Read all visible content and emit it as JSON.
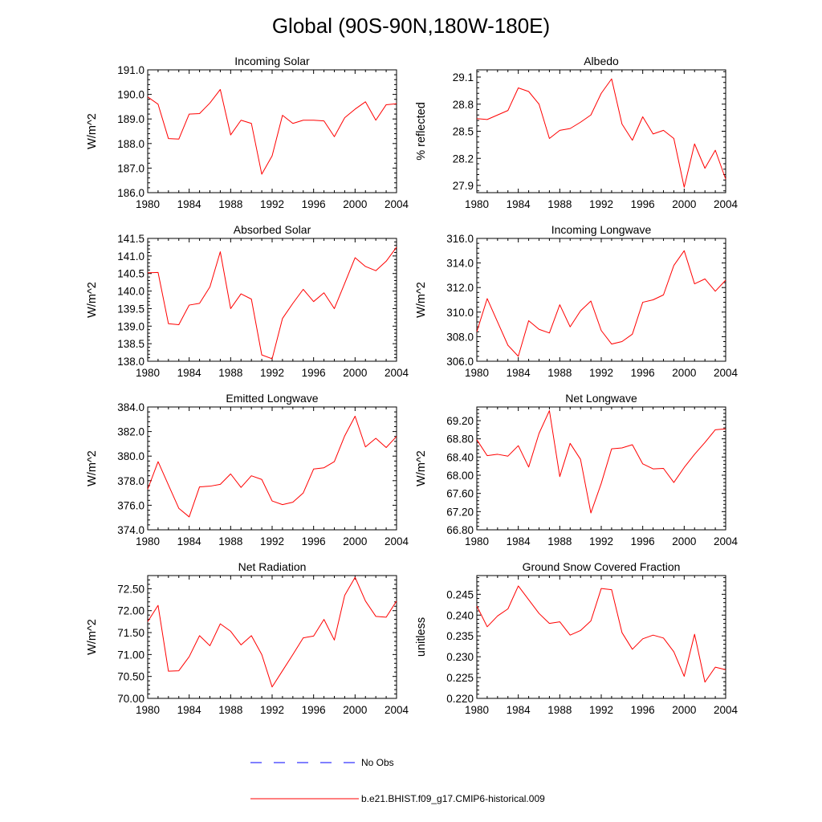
{
  "title": "Global (90S-90N,180W-180E)",
  "colors": {
    "model": "#ff0000",
    "obs": "#0000ff",
    "axis": "#000000"
  },
  "legend": {
    "obs_label": "No Obs",
    "model_label": "b.e21.BHIST.f09_g17.CMIP6-historical.009"
  },
  "chart_data": [
    {
      "type": "line",
      "title": "Incoming Solar",
      "ylabel": "W/m^2",
      "xlabel": "",
      "xlim": [
        1980,
        2004
      ],
      "ylim": [
        186.0,
        191.0
      ],
      "xticks": [
        1980,
        1984,
        1988,
        1992,
        1996,
        2000,
        2004
      ],
      "yticks": [
        "186.0",
        "187.0",
        "188.0",
        "189.0",
        "190.0",
        "191.0"
      ],
      "series": [
        {
          "name": "b.e21.BHIST.f09_g17.CMIP6-historical.009",
          "x": [
            1980,
            1981,
            1982,
            1983,
            1984,
            1985,
            1986,
            1987,
            1988,
            1989,
            1990,
            1991,
            1992,
            1993,
            1994,
            1995,
            1996,
            1997,
            1998,
            1999,
            2000,
            2001,
            2002,
            2003,
            2004
          ],
          "values": [
            189.9,
            189.6,
            188.2,
            188.18,
            189.2,
            189.22,
            189.65,
            190.2,
            188.35,
            188.95,
            188.82,
            186.75,
            187.5,
            189.15,
            188.82,
            188.95,
            188.95,
            188.92,
            188.28,
            189.05,
            189.4,
            189.7,
            188.95,
            189.58,
            189.62
          ]
        }
      ]
    },
    {
      "type": "line",
      "title": "Albedo",
      "ylabel": "% reflected",
      "xlabel": "",
      "xlim": [
        1980,
        2004
      ],
      "ylim": [
        27.82,
        29.18
      ],
      "xticks": [
        1980,
        1984,
        1988,
        1992,
        1996,
        2000,
        2004
      ],
      "yticks": [
        "27.9",
        "28.2",
        "28.5",
        "28.8",
        "29.1"
      ],
      "series": [
        {
          "name": "b.e21.BHIST.f09_g17.CMIP6-historical.009",
          "x": [
            1980,
            1981,
            1982,
            1983,
            1984,
            1985,
            1986,
            1987,
            1988,
            1989,
            1990,
            1991,
            1992,
            1993,
            1994,
            1995,
            1996,
            1997,
            1998,
            1999,
            2000,
            2001,
            2002,
            2003,
            2004
          ],
          "values": [
            28.64,
            28.63,
            28.68,
            28.73,
            28.98,
            28.94,
            28.8,
            28.42,
            28.51,
            28.53,
            28.6,
            28.68,
            28.92,
            29.08,
            28.58,
            28.4,
            28.66,
            28.47,
            28.51,
            28.42,
            27.88,
            28.36,
            28.09,
            28.29,
            27.97
          ]
        }
      ]
    },
    {
      "type": "line",
      "title": "Absorbed Solar",
      "ylabel": "W/m^2",
      "xlabel": "",
      "xlim": [
        1980,
        2004
      ],
      "ylim": [
        138.0,
        141.5
      ],
      "xticks": [
        1980,
        1984,
        1988,
        1992,
        1996,
        2000,
        2004
      ],
      "yticks": [
        "138.0",
        "138.5",
        "139.0",
        "139.5",
        "140.0",
        "140.5",
        "141.0",
        "141.5"
      ],
      "series": [
        {
          "name": "b.e21.BHIST.f09_g17.CMIP6-historical.009",
          "x": [
            1980,
            1981,
            1982,
            1983,
            1984,
            1985,
            1986,
            1987,
            1988,
            1989,
            1990,
            1991,
            1992,
            1993,
            1994,
            1995,
            1996,
            1997,
            1998,
            1999,
            2000,
            2001,
            2002,
            2003,
            2004
          ],
          "values": [
            140.52,
            140.53,
            139.07,
            139.04,
            139.6,
            139.65,
            140.12,
            141.12,
            139.5,
            139.92,
            139.77,
            138.18,
            138.07,
            139.22,
            139.65,
            140.05,
            139.7,
            139.95,
            139.5,
            140.22,
            140.95,
            140.7,
            140.58,
            140.85,
            141.25
          ]
        }
      ]
    },
    {
      "type": "line",
      "title": "Incoming Longwave",
      "ylabel": "W/m^2",
      "xlabel": "",
      "xlim": [
        1980,
        2004
      ],
      "ylim": [
        306.0,
        316.0
      ],
      "xticks": [
        1980,
        1984,
        1988,
        1992,
        1996,
        2000,
        2004
      ],
      "yticks": [
        "306.0",
        "308.0",
        "310.0",
        "312.0",
        "314.0",
        "316.0"
      ],
      "series": [
        {
          "name": "b.e21.BHIST.f09_g17.CMIP6-historical.009",
          "x": [
            1980,
            1981,
            1982,
            1983,
            1984,
            1985,
            1986,
            1987,
            1988,
            1989,
            1990,
            1991,
            1992,
            1993,
            1994,
            1995,
            1996,
            1997,
            1998,
            1999,
            2000,
            2001,
            2002,
            2003,
            2004
          ],
          "values": [
            308.4,
            311.1,
            309.2,
            307.3,
            306.4,
            309.3,
            308.6,
            308.3,
            310.6,
            308.8,
            310.1,
            310.9,
            308.5,
            307.4,
            307.6,
            308.2,
            310.8,
            311.0,
            311.4,
            313.8,
            315.0,
            312.3,
            312.7,
            311.7,
            312.6
          ]
        }
      ]
    },
    {
      "type": "line",
      "title": "Emitted Longwave",
      "ylabel": "W/m^2",
      "xlabel": "",
      "xlim": [
        1980,
        2004
      ],
      "ylim": [
        374.0,
        384.0
      ],
      "xticks": [
        1980,
        1984,
        1988,
        1992,
        1996,
        2000,
        2004
      ],
      "yticks": [
        "374.0",
        "376.0",
        "378.0",
        "380.0",
        "382.0",
        "384.0"
      ],
      "series": [
        {
          "name": "b.e21.BHIST.f09_g17.CMIP6-historical.009",
          "x": [
            1980,
            1981,
            1982,
            1983,
            1984,
            1985,
            1986,
            1987,
            1988,
            1989,
            1990,
            1991,
            1992,
            1993,
            1994,
            1995,
            1996,
            1997,
            1998,
            1999,
            2000,
            2001,
            2002,
            2003,
            2004
          ],
          "values": [
            377.3,
            379.55,
            377.65,
            375.75,
            375.05,
            377.5,
            377.55,
            377.7,
            378.55,
            377.45,
            378.4,
            378.1,
            376.35,
            376.05,
            376.25,
            377.0,
            378.95,
            379.05,
            379.55,
            381.65,
            383.25,
            380.75,
            381.45,
            380.7,
            381.6
          ]
        }
      ]
    },
    {
      "type": "line",
      "title": "Net Longwave",
      "ylabel": "W/m^2",
      "xlabel": "",
      "xlim": [
        1980,
        2004
      ],
      "ylim": [
        66.8,
        69.5
      ],
      "xticks": [
        1980,
        1984,
        1988,
        1992,
        1996,
        2000,
        2004
      ],
      "yticks": [
        "66.80",
        "67.20",
        "67.60",
        "68.00",
        "68.40",
        "68.80",
        "69.20"
      ],
      "series": [
        {
          "name": "b.e21.BHIST.f09_g17.CMIP6-historical.009",
          "x": [
            1980,
            1981,
            1982,
            1983,
            1984,
            1985,
            1986,
            1987,
            1988,
            1989,
            1990,
            1991,
            1992,
            1993,
            1994,
            1995,
            1996,
            1997,
            1998,
            1999,
            2000,
            2001,
            2002,
            2003,
            2004
          ],
          "values": [
            68.78,
            68.43,
            68.46,
            68.42,
            68.65,
            68.18,
            68.92,
            69.42,
            67.97,
            68.7,
            68.35,
            67.17,
            67.82,
            68.58,
            68.6,
            68.67,
            68.25,
            68.14,
            68.15,
            67.84,
            68.17,
            68.46,
            68.72,
            69.0,
            69.02
          ]
        }
      ]
    },
    {
      "type": "line",
      "title": "Net Radiation",
      "ylabel": "W/m^2",
      "xlabel": "",
      "xlim": [
        1980,
        2004
      ],
      "ylim": [
        70.0,
        72.8
      ],
      "xticks": [
        1980,
        1984,
        1988,
        1992,
        1996,
        2000,
        2004
      ],
      "yticks": [
        "70.00",
        "70.50",
        "71.00",
        "71.50",
        "72.00",
        "72.50"
      ],
      "series": [
        {
          "name": "b.e21.BHIST.f09_g17.CMIP6-historical.009",
          "x": [
            1980,
            1981,
            1982,
            1983,
            1984,
            1985,
            1986,
            1987,
            1988,
            1989,
            1990,
            1991,
            1992,
            1993,
            1994,
            1995,
            1996,
            1997,
            1998,
            1999,
            2000,
            2001,
            2002,
            2003,
            2004
          ],
          "values": [
            71.75,
            72.12,
            70.62,
            70.63,
            70.95,
            71.43,
            71.2,
            71.7,
            71.53,
            71.22,
            71.43,
            71.0,
            70.26,
            70.63,
            71.0,
            71.38,
            71.42,
            71.8,
            71.33,
            72.35,
            72.76,
            72.22,
            71.87,
            71.85,
            72.22
          ]
        }
      ]
    },
    {
      "type": "line",
      "title": "Ground Snow Covered Fraction",
      "ylabel": "unitless",
      "xlabel": "",
      "xlim": [
        1980,
        2004
      ],
      "ylim": [
        0.22,
        0.2495
      ],
      "xticks": [
        1980,
        1984,
        1988,
        1992,
        1996,
        2000,
        2004
      ],
      "yticks": [
        "0.220",
        "0.225",
        "0.230",
        "0.235",
        "0.240",
        "0.245"
      ],
      "series": [
        {
          "name": "b.e21.BHIST.f09_g17.CMIP6-historical.009",
          "x": [
            1980,
            1981,
            1982,
            1983,
            1984,
            1985,
            1986,
            1987,
            1988,
            1989,
            1990,
            1991,
            1992,
            1993,
            1994,
            1995,
            1996,
            1997,
            1998,
            1999,
            2000,
            2001,
            2002,
            2003,
            2004
          ],
          "values": [
            0.2422,
            0.2372,
            0.2398,
            0.2415,
            0.247,
            0.2437,
            0.2404,
            0.238,
            0.2384,
            0.2352,
            0.2363,
            0.2386,
            0.2464,
            0.2461,
            0.2358,
            0.2318,
            0.2343,
            0.2352,
            0.2345,
            0.2312,
            0.2253,
            0.2354,
            0.2239,
            0.2275,
            0.2269
          ]
        }
      ]
    }
  ]
}
